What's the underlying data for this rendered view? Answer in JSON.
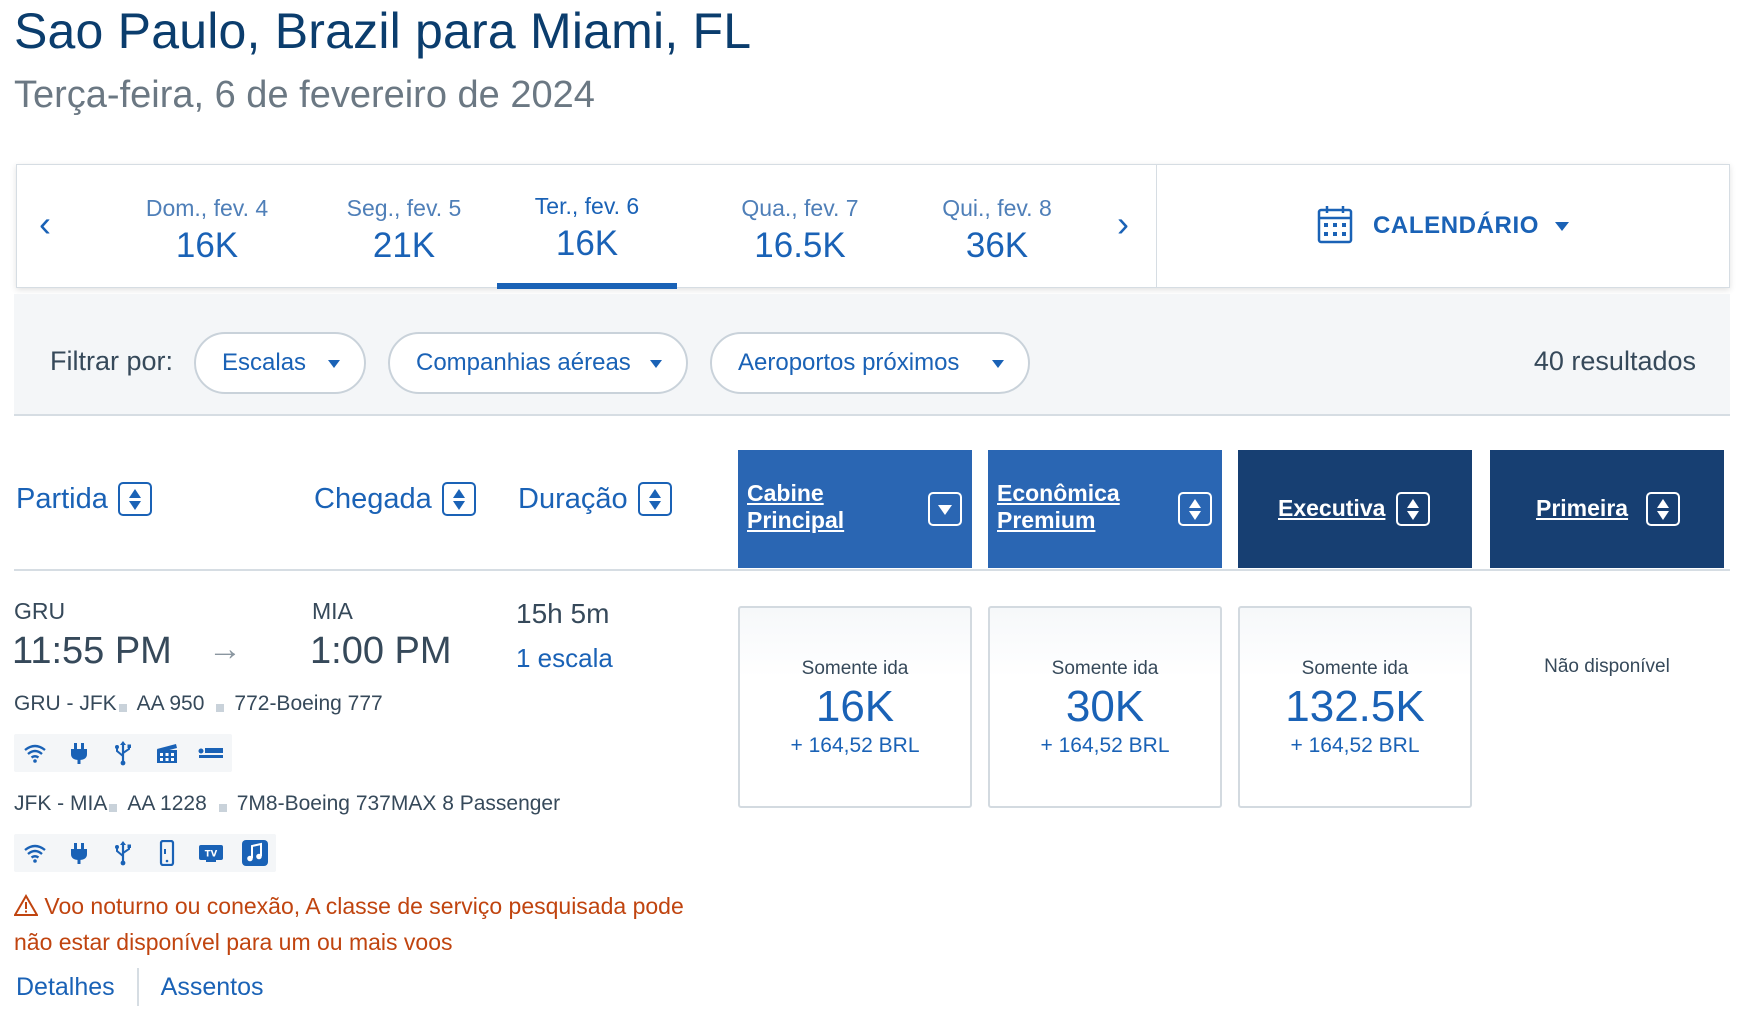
{
  "header": {
    "title": "Sao Paulo, Brazil para Miami, FL",
    "subtitle": "Terça-feira, 6 de fevereiro de 2024"
  },
  "date_bar": {
    "prev_icon": "chevron-left-icon",
    "next_icon": "chevron-right-icon",
    "dates": [
      {
        "label": "Dom., fev. 4",
        "price": "16K"
      },
      {
        "label": "Seg., fev. 5",
        "price": "21K"
      },
      {
        "label": "Ter., fev. 6",
        "price": "16K",
        "selected": true
      },
      {
        "label": "Qua., fev. 7",
        "price": "16.5K"
      },
      {
        "label": "Qui., fev. 8",
        "price": "36K"
      }
    ],
    "calendar_label": "CALENDÁRIO",
    "calendar_icon": "calendar-icon"
  },
  "filters": {
    "label": "Filtrar por:",
    "options": [
      {
        "label": "Escalas"
      },
      {
        "label": "Companhias aéreas"
      },
      {
        "label": "Aeroportos próximos"
      }
    ],
    "results": "40 resultados"
  },
  "columns": {
    "departure": "Partida",
    "arrival": "Chegada",
    "duration": "Duração",
    "cabins": [
      {
        "line1": "Cabine",
        "line2": "Principal",
        "icon": "dropdown-icon",
        "color": "#2a66b3"
      },
      {
        "line1": "Econômica",
        "line2": "Premium",
        "icon": "sort-icon",
        "color": "#2a66b3"
      },
      {
        "line1": "Executiva",
        "line2": "",
        "icon": "sort-icon",
        "color": "#173f72"
      },
      {
        "line1": "Primeira",
        "line2": "",
        "icon": "sort-icon",
        "color": "#173f72"
      }
    ]
  },
  "flight": {
    "origin": "GRU",
    "depart_time": "11:55 PM",
    "destination": "MIA",
    "arrive_time": "1:00 PM",
    "duration": "15h 5m",
    "stops": "1 escala",
    "segments": [
      {
        "route": "GRU - JFK",
        "flight": "AA 950",
        "aircraft": "772-Boeing 777",
        "amenities": [
          "wifi-icon",
          "power-icon",
          "usb-icon",
          "entertainment-icon",
          "lie-flat-seat-icon"
        ]
      },
      {
        "route": "JFK - MIA",
        "flight": "AA 1228",
        "aircraft": "7M8-Boeing 737MAX 8 Passenger",
        "amenities": [
          "wifi-icon",
          "power-icon",
          "usb-icon",
          "device-streaming-icon",
          "live-tv-icon",
          "music-icon"
        ]
      }
    ],
    "warning": "Voo noturno ou conexão, A classe de serviço pesquisada pode não estar disponível para um ou mais voos",
    "links": {
      "details": "Detalhes",
      "seats": "Assentos"
    },
    "fares": [
      {
        "label": "Somente ida",
        "price": "16K",
        "tax": "+ 164,52 BRL"
      },
      {
        "label": "Somente ida",
        "price": "30K",
        "tax": "+ 164,52 BRL"
      },
      {
        "label": "Somente ida",
        "price": "132.5K",
        "tax": "+ 164,52 BRL"
      }
    ],
    "first_class": "Não disponível"
  }
}
